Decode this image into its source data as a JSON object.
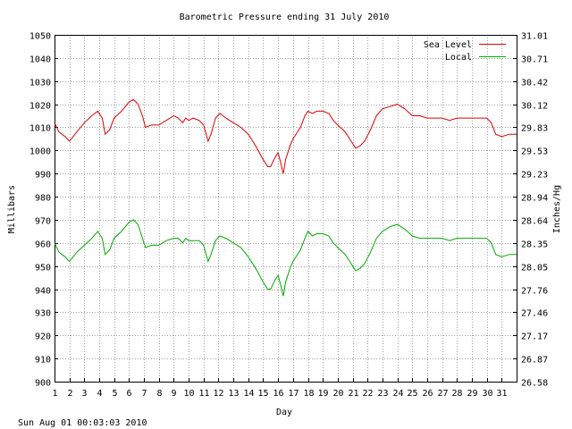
{
  "chart_data": {
    "type": "line",
    "title": "Barometric Pressure ending 31 July 2010",
    "xlabel": "Day",
    "ylabel": "Millibars",
    "ylabel_right": "Inches/Hg",
    "timestamp": "Sun Aug 01 00:03:03 2010",
    "grid": true,
    "legend_position": "top-right",
    "xlim": [
      1,
      32
    ],
    "ylim": [
      900,
      1050
    ],
    "x_ticks": [
      "1",
      "2",
      "3",
      "4",
      "5",
      "6",
      "7",
      "8",
      "9",
      "10",
      "11",
      "12",
      "13",
      "14",
      "15",
      "16",
      "17",
      "18",
      "19",
      "20",
      "21",
      "22",
      "23",
      "24",
      "25",
      "26",
      "27",
      "28",
      "29",
      "30",
      "31"
    ],
    "y_ticks": [
      "900",
      "910",
      "920",
      "930",
      "940",
      "950",
      "960",
      "970",
      "980",
      "990",
      "1000",
      "1010",
      "1020",
      "1030",
      "1040",
      "1050"
    ],
    "y_right_ticks": [
      "26.58",
      "26.87",
      "27.17",
      "27.46",
      "27.76",
      "28.05",
      "28.35",
      "28.64",
      "28.94",
      "29.23",
      "29.53",
      "29.83",
      "30.12",
      "30.42",
      "30.71",
      "31.01"
    ],
    "series": [
      {
        "name": "Sea Level",
        "color": "#dd0000",
        "points": [
          [
            1.0,
            1012
          ],
          [
            1.3,
            1008
          ],
          [
            1.7,
            1006
          ],
          [
            2.0,
            1004
          ],
          [
            2.5,
            1008
          ],
          [
            3.0,
            1012
          ],
          [
            3.5,
            1015
          ],
          [
            3.9,
            1017
          ],
          [
            4.2,
            1014
          ],
          [
            4.4,
            1007
          ],
          [
            4.7,
            1009
          ],
          [
            5.0,
            1014
          ],
          [
            5.5,
            1017
          ],
          [
            6.0,
            1021
          ],
          [
            6.3,
            1022
          ],
          [
            6.6,
            1020
          ],
          [
            6.9,
            1015
          ],
          [
            7.1,
            1010
          ],
          [
            7.5,
            1011
          ],
          [
            8.0,
            1011
          ],
          [
            8.5,
            1013
          ],
          [
            9.0,
            1015
          ],
          [
            9.3,
            1014
          ],
          [
            9.6,
            1012
          ],
          [
            9.8,
            1014
          ],
          [
            10.0,
            1013
          ],
          [
            10.3,
            1014
          ],
          [
            10.7,
            1013
          ],
          [
            11.0,
            1011
          ],
          [
            11.3,
            1004
          ],
          [
            11.5,
            1007
          ],
          [
            11.8,
            1014
          ],
          [
            12.1,
            1016
          ],
          [
            12.5,
            1014
          ],
          [
            13.0,
            1012
          ],
          [
            13.5,
            1010
          ],
          [
            14.0,
            1007
          ],
          [
            14.5,
            1002
          ],
          [
            15.0,
            996
          ],
          [
            15.3,
            993
          ],
          [
            15.5,
            993
          ],
          [
            15.8,
            997
          ],
          [
            16.0,
            999
          ],
          [
            16.2,
            994
          ],
          [
            16.35,
            990
          ],
          [
            16.5,
            996
          ],
          [
            16.8,
            1002
          ],
          [
            17.0,
            1005
          ],
          [
            17.5,
            1010
          ],
          [
            17.8,
            1015
          ],
          [
            18.0,
            1017
          ],
          [
            18.3,
            1016
          ],
          [
            18.6,
            1017
          ],
          [
            19.0,
            1017
          ],
          [
            19.4,
            1016
          ],
          [
            19.7,
            1013
          ],
          [
            20.0,
            1011
          ],
          [
            20.5,
            1008
          ],
          [
            20.9,
            1004
          ],
          [
            21.2,
            1001
          ],
          [
            21.5,
            1002
          ],
          [
            21.8,
            1004
          ],
          [
            22.2,
            1009
          ],
          [
            22.6,
            1015
          ],
          [
            23.0,
            1018
          ],
          [
            23.5,
            1019
          ],
          [
            24.0,
            1020
          ],
          [
            24.5,
            1018
          ],
          [
            25.0,
            1015
          ],
          [
            25.5,
            1015
          ],
          [
            26.0,
            1014
          ],
          [
            26.5,
            1014
          ],
          [
            27.0,
            1014
          ],
          [
            27.5,
            1013
          ],
          [
            28.0,
            1014
          ],
          [
            28.5,
            1014
          ],
          [
            29.0,
            1014
          ],
          [
            29.5,
            1014
          ],
          [
            30.0,
            1014
          ],
          [
            30.3,
            1012
          ],
          [
            30.6,
            1007
          ],
          [
            31.0,
            1006
          ],
          [
            31.5,
            1007
          ],
          [
            32.0,
            1007
          ]
        ]
      },
      {
        "name": "Local",
        "color": "#00aa00",
        "points": [
          [
            1.0,
            960
          ],
          [
            1.3,
            956
          ],
          [
            1.7,
            954
          ],
          [
            2.0,
            952
          ],
          [
            2.5,
            956
          ],
          [
            3.0,
            959
          ],
          [
            3.5,
            962
          ],
          [
            3.9,
            965
          ],
          [
            4.2,
            962
          ],
          [
            4.4,
            955
          ],
          [
            4.7,
            957
          ],
          [
            5.0,
            962
          ],
          [
            5.5,
            965
          ],
          [
            6.0,
            969
          ],
          [
            6.3,
            970
          ],
          [
            6.6,
            968
          ],
          [
            6.9,
            962
          ],
          [
            7.1,
            958
          ],
          [
            7.5,
            959
          ],
          [
            8.0,
            959
          ],
          [
            8.5,
            961
          ],
          [
            9.0,
            962
          ],
          [
            9.3,
            962
          ],
          [
            9.6,
            960
          ],
          [
            9.8,
            962
          ],
          [
            10.0,
            961
          ],
          [
            10.3,
            961
          ],
          [
            10.7,
            961
          ],
          [
            11.0,
            959
          ],
          [
            11.3,
            952
          ],
          [
            11.5,
            955
          ],
          [
            11.8,
            961
          ],
          [
            12.1,
            963
          ],
          [
            12.5,
            962
          ],
          [
            13.0,
            960
          ],
          [
            13.5,
            958
          ],
          [
            14.0,
            954
          ],
          [
            14.5,
            949
          ],
          [
            15.0,
            943
          ],
          [
            15.3,
            940
          ],
          [
            15.5,
            940
          ],
          [
            15.8,
            944
          ],
          [
            16.0,
            946
          ],
          [
            16.2,
            941
          ],
          [
            16.35,
            937
          ],
          [
            16.5,
            943
          ],
          [
            16.8,
            949
          ],
          [
            17.0,
            952
          ],
          [
            17.5,
            957
          ],
          [
            17.8,
            962
          ],
          [
            18.0,
            965
          ],
          [
            18.3,
            963
          ],
          [
            18.6,
            964
          ],
          [
            19.0,
            964
          ],
          [
            19.4,
            963
          ],
          [
            19.7,
            960
          ],
          [
            20.0,
            958
          ],
          [
            20.5,
            955
          ],
          [
            20.9,
            951
          ],
          [
            21.2,
            948
          ],
          [
            21.5,
            949
          ],
          [
            21.8,
            951
          ],
          [
            22.2,
            956
          ],
          [
            22.6,
            962
          ],
          [
            23.0,
            965
          ],
          [
            23.5,
            967
          ],
          [
            24.0,
            968
          ],
          [
            24.5,
            966
          ],
          [
            25.0,
            963
          ],
          [
            25.5,
            962
          ],
          [
            26.0,
            962
          ],
          [
            26.5,
            962
          ],
          [
            27.0,
            962
          ],
          [
            27.5,
            961
          ],
          [
            28.0,
            962
          ],
          [
            28.5,
            962
          ],
          [
            29.0,
            962
          ],
          [
            29.5,
            962
          ],
          [
            30.0,
            962
          ],
          [
            30.3,
            960
          ],
          [
            30.6,
            955
          ],
          [
            31.0,
            954
          ],
          [
            31.5,
            955
          ],
          [
            32.0,
            955
          ]
        ]
      }
    ]
  }
}
